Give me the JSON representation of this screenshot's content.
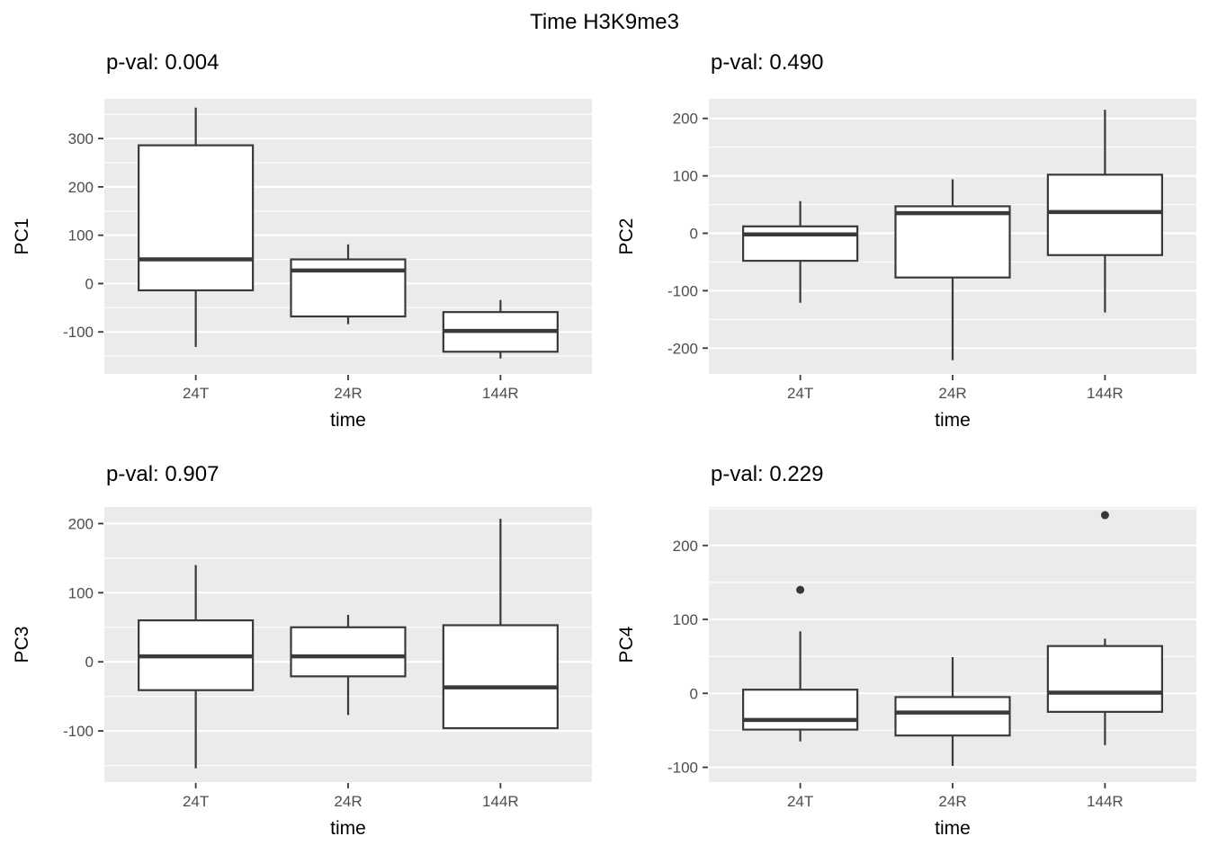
{
  "title": "Time H3K9me3",
  "style_colors": {
    "panel_background": "#ebebeb",
    "gridline": "#ffffff",
    "box_stroke": "#3a3a3a",
    "tick_label": "#4d4d4d",
    "axis_title": "#000000",
    "outlier": "#383838"
  },
  "chart_data": [
    {
      "type": "boxplot",
      "panel": "PC1",
      "subtitle": "p-val: 0.004",
      "ylabel": "PC1",
      "xlabel": "time",
      "categories": [
        "24T",
        "24R",
        "144R"
      ],
      "yticks": [
        300,
        200,
        100,
        0,
        -100
      ],
      "ylim": [
        -187,
        382
      ],
      "grid": true,
      "legend": "none",
      "boxes": [
        {
          "category": "24T",
          "whisker_low": -131,
          "q1": -14,
          "median": 50,
          "q3": 286,
          "whisker_high": 364,
          "outliers": []
        },
        {
          "category": "24R",
          "whisker_low": -84,
          "q1": -68,
          "median": 27,
          "q3": 50,
          "whisker_high": 81,
          "outliers": []
        },
        {
          "category": "144R",
          "whisker_low": -155,
          "q1": -141,
          "median": -98,
          "q3": -59,
          "whisker_high": -34,
          "outliers": []
        }
      ]
    },
    {
      "type": "boxplot",
      "panel": "PC2",
      "subtitle": "p-val: 0.490",
      "ylabel": "PC2",
      "xlabel": "time",
      "categories": [
        "24T",
        "24R",
        "144R"
      ],
      "yticks": [
        200,
        100,
        0,
        -100,
        -200
      ],
      "ylim": [
        -245,
        234
      ],
      "grid": true,
      "legend": "none",
      "boxes": [
        {
          "category": "24T",
          "whisker_low": -121,
          "q1": -48,
          "median": -2,
          "q3": 12,
          "whisker_high": 56,
          "outliers": []
        },
        {
          "category": "24R",
          "whisker_low": -221,
          "q1": -77,
          "median": 35,
          "q3": 47,
          "whisker_high": 94,
          "outliers": []
        },
        {
          "category": "144R",
          "whisker_low": -138,
          "q1": -38,
          "median": 37,
          "q3": 102,
          "whisker_high": 215,
          "outliers": []
        }
      ]
    },
    {
      "type": "boxplot",
      "panel": "PC3",
      "subtitle": "p-val: 0.907",
      "ylabel": "PC3",
      "xlabel": "time",
      "categories": [
        "24T",
        "24R",
        "144R"
      ],
      "yticks": [
        200,
        100,
        0,
        -100
      ],
      "ylim": [
        -174,
        224
      ],
      "grid": true,
      "legend": "none",
      "boxes": [
        {
          "category": "24T",
          "whisker_low": -154,
          "q1": -41,
          "median": 8,
          "q3": 60,
          "whisker_high": 140,
          "outliers": []
        },
        {
          "category": "24R",
          "whisker_low": -77,
          "q1": -21,
          "median": 8,
          "q3": 50,
          "whisker_high": 68,
          "outliers": []
        },
        {
          "category": "144R",
          "whisker_low": -96,
          "q1": -96,
          "median": -37,
          "q3": 53,
          "whisker_high": 207,
          "outliers": []
        }
      ]
    },
    {
      "type": "boxplot",
      "panel": "PC4",
      "subtitle": "p-val: 0.229",
      "ylabel": "PC4",
      "xlabel": "time",
      "categories": [
        "24T",
        "24R",
        "144R"
      ],
      "yticks": [
        200,
        100,
        0,
        -100
      ],
      "ylim": [
        -120,
        252
      ],
      "grid": true,
      "legend": "none",
      "boxes": [
        {
          "category": "24T",
          "whisker_low": -65,
          "q1": -49,
          "median": -36,
          "q3": 5,
          "whisker_high": 84,
          "outliers": [
            140
          ]
        },
        {
          "category": "24R",
          "whisker_low": -98,
          "q1": -57,
          "median": -26,
          "q3": -5,
          "whisker_high": 49,
          "outliers": []
        },
        {
          "category": "144R",
          "whisker_low": -70,
          "q1": -25,
          "median": 1,
          "q3": 64,
          "whisker_high": 74,
          "outliers": [
            241
          ]
        }
      ]
    }
  ]
}
